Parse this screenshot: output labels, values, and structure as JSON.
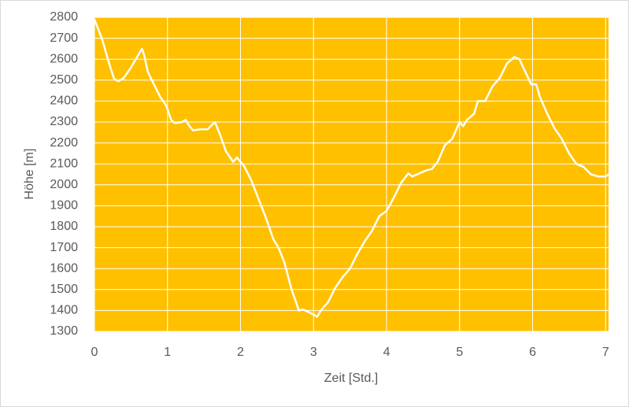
{
  "chart_data": {
    "type": "line",
    "x_label": "Zeit [Std.]",
    "y_label": "Höhe [m]",
    "x": [
      0,
      0.1,
      0.2,
      0.27,
      0.33,
      0.4,
      0.5,
      0.6,
      0.65,
      0.68,
      0.73,
      0.8,
      0.9,
      0.98,
      1.05,
      1.1,
      1.2,
      1.25,
      1.3,
      1.35,
      1.45,
      1.55,
      1.65,
      1.72,
      1.8,
      1.9,
      1.95,
      2.05,
      2.15,
      2.25,
      2.35,
      2.45,
      2.52,
      2.6,
      2.7,
      2.8,
      2.86,
      3.0,
      3.05,
      3.1,
      3.2,
      3.3,
      3.4,
      3.5,
      3.6,
      3.7,
      3.8,
      3.9,
      4.0,
      4.1,
      4.2,
      4.3,
      4.35,
      4.45,
      4.55,
      4.62,
      4.7,
      4.8,
      4.9,
      5.0,
      5.05,
      5.1,
      5.2,
      5.25,
      5.35,
      5.45,
      5.55,
      5.65,
      5.75,
      5.82,
      5.9,
      5.98,
      6.05,
      6.1,
      6.2,
      6.3,
      6.4,
      6.5,
      6.6,
      6.7,
      6.8,
      6.9,
      7.0,
      7.04
    ],
    "series": [
      {
        "color": "#ffffff",
        "values": [
          2790,
          2700,
          2580,
          2505,
          2495,
          2510,
          2560,
          2620,
          2650,
          2620,
          2540,
          2490,
          2420,
          2380,
          2310,
          2295,
          2300,
          2310,
          2280,
          2260,
          2265,
          2265,
          2300,
          2240,
          2160,
          2110,
          2130,
          2090,
          2020,
          1930,
          1840,
          1740,
          1700,
          1630,
          1500,
          1400,
          1405,
          1380,
          1370,
          1400,
          1440,
          1510,
          1560,
          1600,
          1670,
          1730,
          1780,
          1850,
          1875,
          1940,
          2010,
          2055,
          2040,
          2055,
          2070,
          2075,
          2110,
          2190,
          2220,
          2300,
          2280,
          2310,
          2340,
          2400,
          2400,
          2470,
          2510,
          2580,
          2610,
          2600,
          2540,
          2480,
          2480,
          2420,
          2340,
          2270,
          2220,
          2150,
          2100,
          2085,
          2050,
          2040,
          2040,
          2050
        ]
      }
    ],
    "xlim": [
      0,
      7.04
    ],
    "xticks": [
      0,
      1,
      2,
      3,
      4,
      5,
      6,
      7
    ],
    "ylim": [
      1300,
      2800
    ],
    "yticks": [
      1300,
      1400,
      1500,
      1600,
      1700,
      1800,
      1900,
      2000,
      2100,
      2200,
      2300,
      2400,
      2500,
      2600,
      2700,
      2800
    ],
    "grid": true,
    "plot_background": "#ffc000"
  }
}
